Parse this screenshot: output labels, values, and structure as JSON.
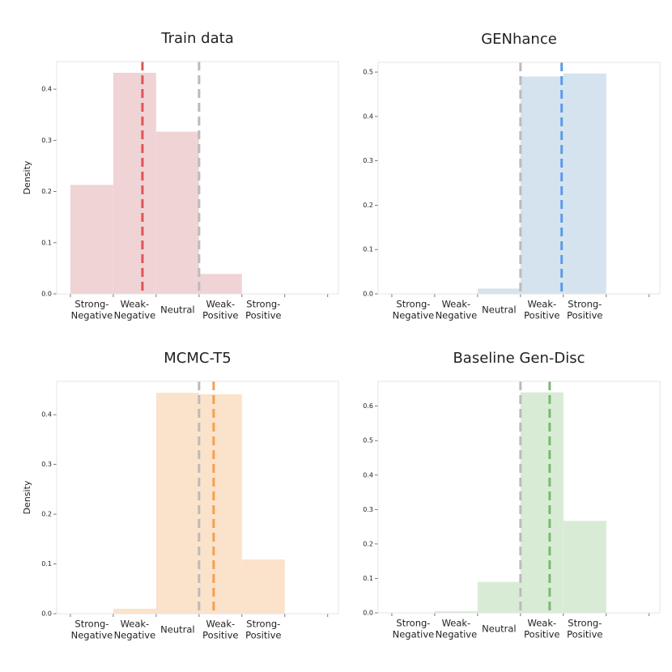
{
  "chart_data": [
    {
      "type": "histogram",
      "title": "Train data",
      "ylabel": "Density",
      "categories": [
        [
          "Strong-",
          "Negative"
        ],
        [
          "Weak-",
          "Negative"
        ],
        [
          "Neutral"
        ],
        [
          "Weak-",
          "Positive"
        ],
        [
          "Strong-",
          "Positive"
        ]
      ],
      "values": [
        0.213,
        0.432,
        0.317,
        0.039,
        0
      ],
      "color": "#f0d3d5",
      "xlim": [
        -0.32,
        6.25
      ],
      "ylim": [
        0,
        0.454
      ],
      "yticks": [
        0.0,
        0.1,
        0.2,
        0.3,
        0.4
      ],
      "lines": [
        {
          "value": 1.68,
          "color": "#e05555"
        },
        {
          "value": 3,
          "color": "#bbbbbb"
        }
      ]
    },
    {
      "type": "histogram",
      "title": "GENhance",
      "categories": [
        [
          "Strong-",
          "Negative"
        ],
        [
          "Weak-",
          "Negative"
        ],
        [
          "Neutral"
        ],
        [
          "Weak-",
          "Positive"
        ],
        [
          "Strong-",
          "Positive"
        ]
      ],
      "values": [
        0,
        0,
        0.012,
        0.49,
        0.497
      ],
      "color": "#d5e3ef",
      "xlim": [
        -0.32,
        6.25
      ],
      "ylim": [
        0,
        0.522
      ],
      "yticks": [
        0.0,
        0.1,
        0.2,
        0.3,
        0.4,
        0.5
      ],
      "lines": [
        {
          "value": 3,
          "color": "#bbbbbb"
        },
        {
          "value": 3.96,
          "color": "#5b9be8"
        }
      ]
    },
    {
      "type": "histogram",
      "title": "MCMC-T5",
      "ylabel": "Density",
      "categories": [
        [
          "Strong-",
          "Negative"
        ],
        [
          "Weak-",
          "Negative"
        ],
        [
          "Neutral"
        ],
        [
          "Weak-",
          "Positive"
        ],
        [
          "Strong-",
          "Positive"
        ]
      ],
      "values": [
        0,
        0.01,
        0.444,
        0.441,
        0.109
      ],
      "color": "#fbe2cb",
      "xlim": [
        -0.32,
        6.25
      ],
      "ylim": [
        0,
        0.467
      ],
      "yticks": [
        0.0,
        0.1,
        0.2,
        0.3,
        0.4
      ],
      "lines": [
        {
          "value": 3,
          "color": "#bbbbbb"
        },
        {
          "value": 3.34,
          "color": "#f5a050"
        }
      ]
    },
    {
      "type": "histogram",
      "title": "Baseline Gen-Disc",
      "categories": [
        [
          "Strong-",
          "Negative"
        ],
        [
          "Weak-",
          "Negative"
        ],
        [
          "Neutral"
        ],
        [
          "Weak-",
          "Positive"
        ],
        [
          "Strong-",
          "Positive"
        ]
      ],
      "values": [
        0,
        0.005,
        0.09,
        0.64,
        0.267
      ],
      "color": "#d8ecd5",
      "xlim": [
        -0.32,
        6.25
      ],
      "ylim": [
        0,
        0.672
      ],
      "yticks": [
        0.0,
        0.1,
        0.2,
        0.3,
        0.4,
        0.5,
        0.6
      ],
      "lines": [
        {
          "value": 3,
          "color": "#bbbbbb"
        },
        {
          "value": 3.68,
          "color": "#7bb870"
        }
      ]
    }
  ]
}
